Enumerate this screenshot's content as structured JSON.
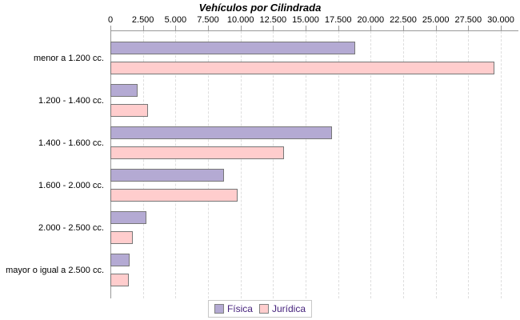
{
  "title": "Vehículos por Cilindrada",
  "colors": {
    "fisica_fill": "#b4aad3",
    "juridica_fill": "#ffcdcd",
    "bar_border": "#777777",
    "axis": "#999999",
    "grid": "#dedede",
    "legend_text": "#45217c",
    "legend_border": "#c8c8c8",
    "title_text": "#000000",
    "label_text": "#000000"
  },
  "chart_data": {
    "type": "bar",
    "orientation": "horizontal",
    "title": "Vehículos por Cilindrada",
    "categories": [
      "menor a 1.200 cc.",
      "1.200 - 1.400 cc.",
      "1.400 - 1.600 cc.",
      "1.600 - 2.000 cc.",
      "2.000 - 2.500 cc.",
      "mayor o igual a 2.500 cc."
    ],
    "series": [
      {
        "name": "Física",
        "color": "#b4aad3",
        "values": [
          18800,
          2100,
          17000,
          8700,
          2750,
          1500
        ]
      },
      {
        "name": "Jurídica",
        "color": "#ffcdcd",
        "values": [
          29500,
          2900,
          13350,
          9800,
          1700,
          1400
        ]
      }
    ],
    "x_axis": {
      "position": "top",
      "min": 0,
      "max": 30000,
      "tick_interval": 2500,
      "tick_labels": [
        "0",
        "2.500",
        "5.000",
        "7.500",
        "10.000",
        "12.500",
        "15.000",
        "17.500",
        "20.000",
        "22.500",
        "25.000",
        "27.500",
        "30.000"
      ]
    },
    "grid": true,
    "legend": {
      "position": "bottom",
      "entries": [
        "Física",
        "Jurídica"
      ]
    }
  }
}
